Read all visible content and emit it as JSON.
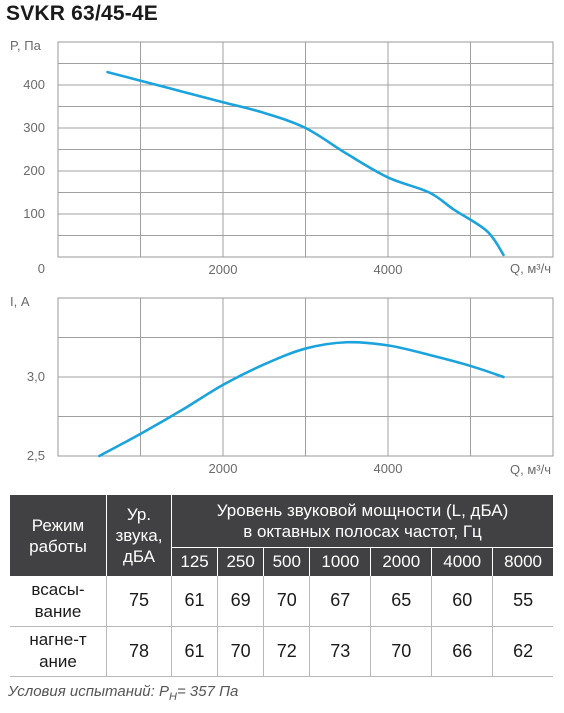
{
  "title": "SVKR 63/45-4E",
  "chart_data": [
    {
      "type": "line",
      "ylabel": "P, Па",
      "xlabel": "Q, м³/ч",
      "xlim": [
        0,
        6000
      ],
      "ylim": [
        0,
        500
      ],
      "y_ticks": [
        100,
        200,
        300,
        400
      ],
      "y_tick_labels": [
        "100",
        "200",
        "300",
        "400"
      ],
      "x_ticks": [
        2000,
        4000
      ],
      "x_tick_labels": [
        "2000",
        "4000"
      ],
      "origin_label": "0",
      "grid": true,
      "series": [
        {
          "color": "#1aa3dc",
          "x": [
            600,
            1000,
            1500,
            2000,
            2500,
            3000,
            3500,
            4000,
            4500,
            4800,
            5200,
            5400
          ],
          "y": [
            430,
            410,
            385,
            360,
            335,
            300,
            240,
            185,
            150,
            110,
            60,
            5
          ]
        }
      ]
    },
    {
      "type": "line",
      "ylabel": "I, А",
      "xlabel": "Q, м³/ч",
      "xlim": [
        0,
        6000
      ],
      "ylim": [
        2.5,
        3.5
      ],
      "y_ticks": [
        2.5,
        3.0
      ],
      "y_tick_labels": [
        "2,5",
        "3,0"
      ],
      "x_ticks": [
        2000,
        4000
      ],
      "x_tick_labels": [
        "2000",
        "4000"
      ],
      "grid": true,
      "series": [
        {
          "color": "#1aa3dc",
          "x": [
            500,
            1000,
            1500,
            2000,
            2500,
            3000,
            3500,
            4000,
            4500,
            5000,
            5400
          ],
          "y": [
            2.5,
            2.64,
            2.79,
            2.95,
            3.08,
            3.18,
            3.22,
            3.2,
            3.14,
            3.07,
            3.0
          ]
        }
      ]
    }
  ],
  "table": {
    "head_mode": "Режим работы",
    "head_level": "Ур. звука, дБА",
    "head_power_line1": "Уровень звуковой мощности (L, дБА)",
    "head_power_line2": "в октавных полосах частот, Гц",
    "bands": [
      "125",
      "250",
      "500",
      "1000",
      "2000",
      "4000",
      "8000"
    ],
    "rows": [
      {
        "mode": "всасы-вание",
        "level": "75",
        "values": [
          "61",
          "69",
          "70",
          "67",
          "65",
          "60",
          "55"
        ]
      },
      {
        "mode": "нагне-тание",
        "level": "78",
        "values": [
          "61",
          "70",
          "72",
          "73",
          "70",
          "66",
          "62"
        ]
      }
    ]
  },
  "conditions": {
    "prefix": "Условия испытаний: P",
    "sub": "Н",
    "suffix": "= 357 Па"
  }
}
